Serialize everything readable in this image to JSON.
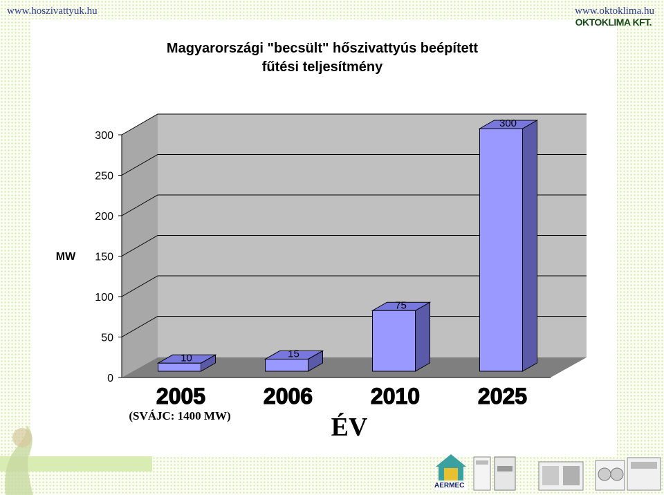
{
  "header": {
    "left_link": "www.hoszivattyuk.hu",
    "right_link": "www.oktoklima.hu",
    "right_logo": "OKTOKLIMA KFT."
  },
  "chart_data": {
    "type": "bar",
    "title_line1": "Magyarországi \"becsült\" hőszivattyús beépített",
    "title_line2": "fűtési teljesítmény",
    "ylabel": "MW",
    "xlabel": "ÉV",
    "note": "(SVÁJC: 1400 MW)",
    "categories": [
      "2005",
      "2006",
      "2010",
      "2025"
    ],
    "values": [
      10,
      15,
      75,
      300
    ],
    "data_labels": [
      "10",
      "15",
      "75",
      "300"
    ],
    "yticks": [
      "0",
      "50",
      "100",
      "150",
      "200",
      "250",
      "300"
    ],
    "ylim": [
      0,
      300
    ],
    "grid": true,
    "bar_color": "#9999ff",
    "bar_side_color": "#5a5aa8",
    "wall_color": "#c0c0c0",
    "floor_color": "#7f7f7f"
  },
  "footer": {
    "brand": "AERMEC",
    "icons": [
      "house-logo-icon",
      "boiler-unit-icon",
      "cabinet-unit-icon",
      "chiller-unit-icon",
      "outdoor-unit-icon",
      "large-chiller-icon"
    ]
  }
}
